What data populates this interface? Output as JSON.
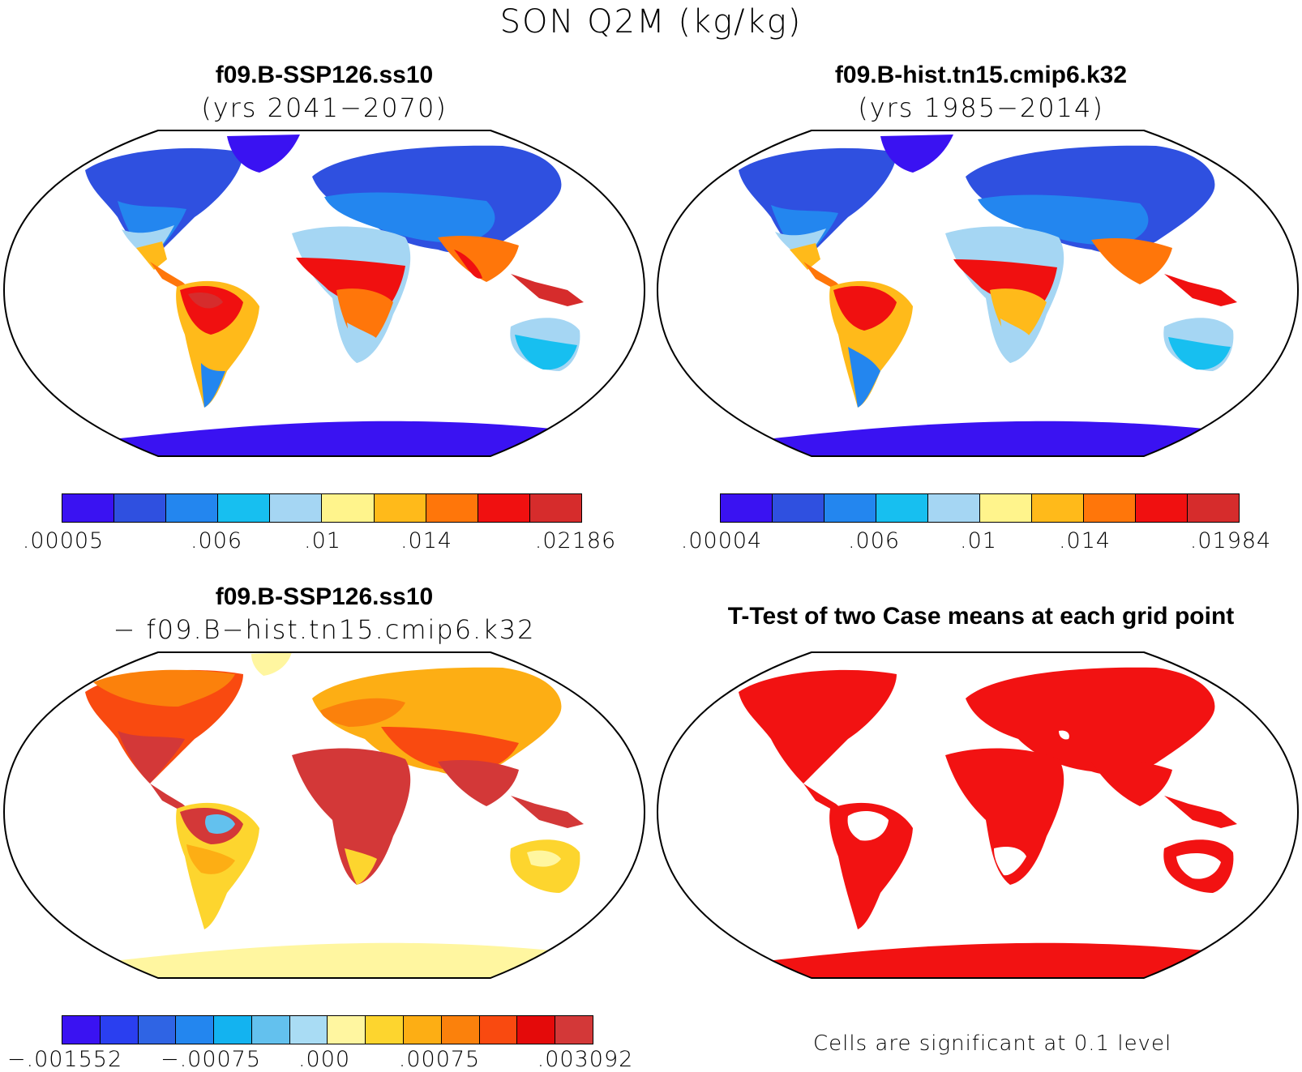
{
  "title": "SON Q2M (kg/kg)",
  "colors": {
    "abs_scale": [
      "#3a12f2",
      "#2f50e0",
      "#2386ef",
      "#17bff0",
      "#a5d6f3",
      "#fff48c",
      "#ffba1a",
      "#ff760a",
      "#f01010",
      "#d62c2c"
    ],
    "diff_scale": [
      "#3a12f2",
      "#2a3ff0",
      "#2f64e4",
      "#2386ef",
      "#13b3f0",
      "#63c1ee",
      "#a9dcf4",
      "#fff6a0",
      "#fdd52e",
      "#fdae14",
      "#fb810c",
      "#f94a10",
      "#e40a0a",
      "#d33838"
    ],
    "significant": "#f21212"
  },
  "panels": {
    "top_left": {
      "title": "f09.B-SSP126.ss10",
      "subtitle": "(yrs 2041−2070)",
      "colorbar_labels": [
        ".00005",
        ".006",
        ".01",
        ".014",
        ".02186"
      ]
    },
    "top_right": {
      "title": "f09.B-hist.tn15.cmip6.k32",
      "subtitle": "(yrs 1985−2014)",
      "colorbar_labels": [
        ".00004",
        ".006",
        ".01",
        ".014",
        ".01984"
      ]
    },
    "bottom_left": {
      "title": "f09.B-SSP126.ss10",
      "subtitle": "− f09.B−hist.tn15.cmip6.k32",
      "colorbar_labels": [
        "−.001552",
        "−.00075",
        ".000",
        ".00075",
        ".003092"
      ]
    },
    "bottom_right": {
      "title": "T-Test of two Case means at each grid point",
      "note": "Cells are significant at 0.1 level"
    }
  }
}
